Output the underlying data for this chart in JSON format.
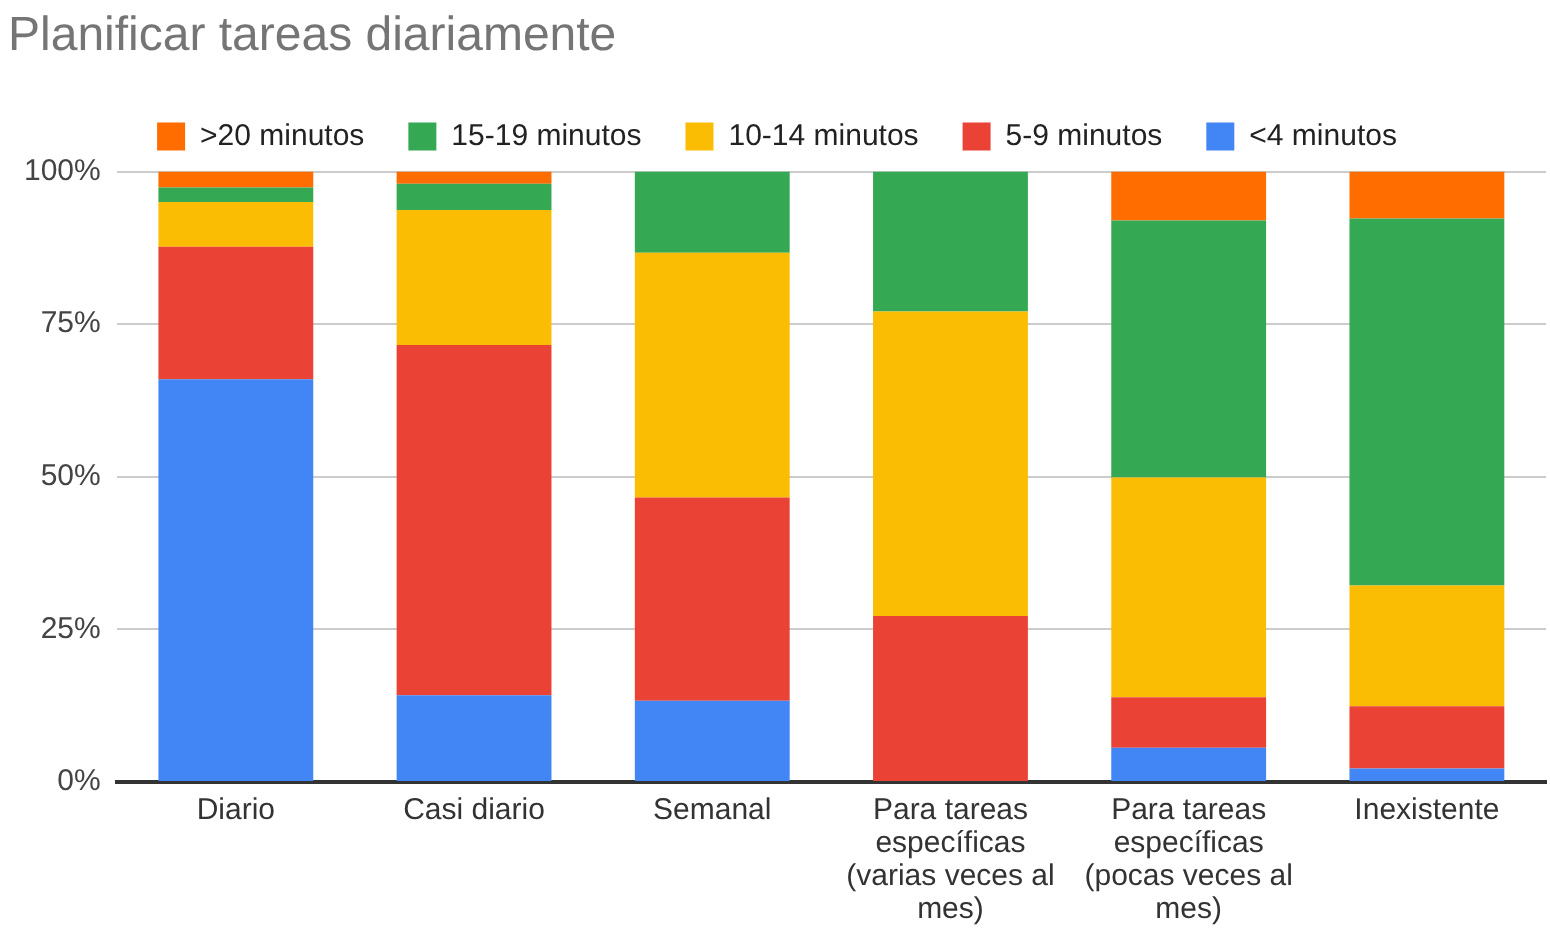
{
  "chart_data": {
    "type": "bar",
    "title": "Planificar tareas diariamente",
    "categories": [
      "Diario",
      "Casi diario",
      "Semanal",
      "Para tareas específicas (varias veces al mes)",
      "Para tareas específicas (pocas veces al mes)",
      "Inexistente"
    ],
    "series": [
      {
        "name": "<4 minutos",
        "color": "#4285f4",
        "values": [
          66.0,
          14.2,
          13.3,
          0,
          5.6,
          2.2
        ]
      },
      {
        "name": "5-9 minutos",
        "color": "#ea4335",
        "values": [
          21.7,
          57.4,
          33.3,
          27.2,
          8.3,
          10.2
        ]
      },
      {
        "name": "10-14 minutos",
        "color": "#fbbc04",
        "values": [
          7.3,
          22.1,
          40.1,
          49.9,
          36.0,
          19.8
        ]
      },
      {
        "name": "15-19 minutos",
        "color": "#34a853",
        "values": [
          2.4,
          4.3,
          13.3,
          22.9,
          42.1,
          60.1
        ]
      },
      {
        "name": ">20 minutos",
        "color": "#ff6d01",
        "values": [
          2.6,
          2.0,
          0,
          0,
          8.0,
          7.7
        ]
      }
    ],
    "stacked": true,
    "ylim": [
      0,
      100
    ],
    "yticks": [
      {
        "value": 0,
        "label": "0%"
      },
      {
        "value": 25,
        "label": "25%"
      },
      {
        "value": 50,
        "label": "50%"
      },
      {
        "value": 75,
        "label": "75%"
      },
      {
        "value": 100,
        "label": "100%"
      }
    ],
    "grid": "y",
    "legend": "top"
  }
}
